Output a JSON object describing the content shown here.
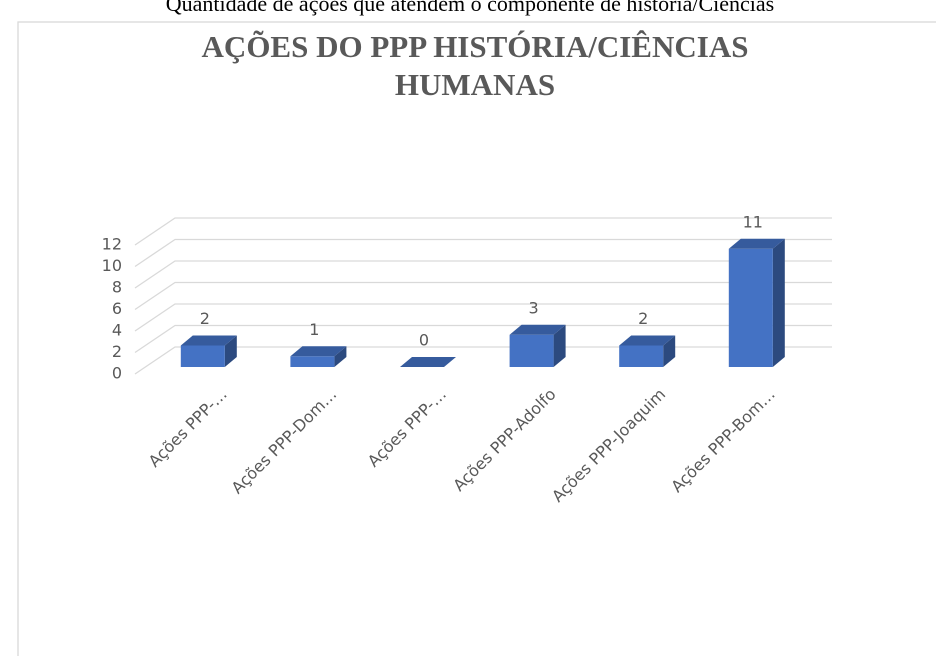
{
  "chart_data": {
    "type": "bar3d",
    "caption": "Quantidade de ações que atendem o componente de história/Ciências",
    "title": [
      "AÇÕES DO PPP HISTÓRIA/CIÊNCIAS",
      "HUMANAS"
    ],
    "categories": [
      "Ações PPP-…",
      "Ações PPP-Dom…",
      "Ações PPP-…",
      "Ações PPP-Adolfo",
      "Ações PPP-Joaquim",
      "Ações PPP-Bom…"
    ],
    "values": [
      2,
      1,
      0,
      3,
      2,
      11
    ],
    "color": "#4472c4",
    "ylim": [
      0,
      12
    ],
    "yticks": [
      0,
      2,
      4,
      6,
      8,
      10,
      12
    ],
    "grid": true
  }
}
